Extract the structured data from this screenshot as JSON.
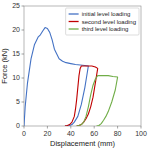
{
  "chart_data": {
    "type": "line",
    "xlabel": "Displacement (mm)",
    "ylabel": "Force (kN)",
    "xlim": [
      0,
      100
    ],
    "ylim": [
      0,
      25
    ],
    "xticks": [
      0,
      20,
      40,
      60,
      80,
      100
    ],
    "yticks": [
      0,
      5,
      10,
      15,
      20,
      25
    ],
    "grid": false,
    "legend": "upper-right",
    "series": [
      {
        "name": "initial level loading",
        "color": "#4472c4",
        "x": [
          0,
          1,
          3,
          6,
          9,
          12,
          14,
          16,
          18,
          20,
          22,
          24,
          26,
          28,
          30,
          33,
          36,
          40,
          44,
          48,
          52,
          55,
          55,
          52,
          49,
          46,
          43,
          41,
          39,
          37,
          35
        ],
        "values": [
          0,
          4,
          9,
          14,
          17,
          18.5,
          19,
          19.8,
          20.5,
          20.3,
          19.5,
          18,
          16,
          15,
          14,
          13.5,
          13.2,
          13.0,
          12.8,
          12.7,
          12.6,
          12.5,
          12.5,
          8,
          4.5,
          2,
          0.8,
          0.3,
          0.1,
          0.02,
          0
        ]
      },
      {
        "name": "second level loading",
        "color": "#c00000",
        "x": [
          35,
          37,
          39,
          41,
          43,
          44,
          45,
          46,
          47,
          48,
          49,
          50,
          52,
          55,
          58,
          61,
          63,
          63,
          61,
          59,
          57,
          55,
          53,
          51,
          49,
          47,
          45
        ],
        "values": [
          0,
          0.1,
          0.3,
          0.8,
          2,
          3.5,
          5.5,
          8,
          10.5,
          12,
          12.5,
          12.5,
          12.5,
          12.5,
          12.5,
          12.3,
          12.0,
          12.0,
          9,
          6,
          4,
          2.5,
          1.5,
          0.8,
          0.3,
          0.1,
          0
        ]
      },
      {
        "name": "third level loading",
        "color": "#70ad47",
        "x": [
          45,
          47,
          49,
          51,
          53,
          55,
          57,
          59,
          61,
          63,
          65,
          68,
          72,
          76,
          80,
          80,
          78,
          75,
          72,
          70,
          68,
          66,
          64,
          62
        ],
        "values": [
          0,
          0.1,
          0.3,
          0.8,
          2,
          4,
          6.5,
          8.5,
          9.8,
          10.5,
          10.5,
          10.5,
          10.5,
          10.3,
          10.2,
          10.2,
          7.5,
          5,
          3,
          2,
          1.2,
          0.5,
          0.1,
          0
        ]
      }
    ]
  }
}
